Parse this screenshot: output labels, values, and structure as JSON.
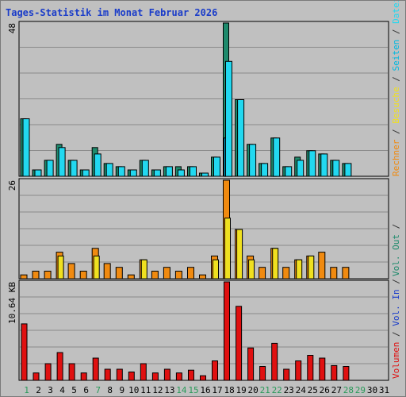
{
  "title": "Tages-Statistik im Monat Februar 2026",
  "colors": {
    "background": "#c0c0c0",
    "anfragen": "#1e8a6c",
    "dateien": "#22d8f0",
    "seiten": "#00b8e0",
    "besuche": "#f0e020",
    "rechner": "#f08a10",
    "volumen": "#e01010",
    "title": "#1a3cc9",
    "weekend_day": "#2a9a5a",
    "weekday": "#000000"
  },
  "chart_data": [
    {
      "type": "bar",
      "panel": "top",
      "scale_label": "48",
      "ylim": [
        0,
        48
      ],
      "categories": [
        "1",
        "2",
        "3",
        "4",
        "5",
        "6",
        "7",
        "8",
        "9",
        "10",
        "11",
        "12",
        "13",
        "14",
        "15",
        "16",
        "17",
        "18",
        "19",
        "20",
        "21",
        "22",
        "23",
        "24",
        "25",
        "26",
        "27",
        "28",
        "29",
        "30",
        "31"
      ],
      "series": [
        {
          "name": "Anfragen",
          "values": [
            18,
            2,
            5,
            10,
            5,
            2,
            9,
            4,
            3,
            2,
            5,
            2,
            3,
            3,
            3,
            1,
            6,
            48,
            24,
            10,
            4,
            12,
            3,
            6,
            8,
            7,
            5,
            4,
            0,
            0,
            0
          ]
        },
        {
          "name": "Dateien",
          "values": [
            18,
            2,
            5,
            9,
            5,
            2,
            7,
            4,
            3,
            2,
            5,
            2,
            3,
            2,
            3,
            1,
            6,
            36,
            24,
            10,
            4,
            12,
            3,
            5,
            8,
            7,
            5,
            4,
            0,
            0,
            0
          ]
        },
        {
          "name": "Seiten",
          "values": [
            0,
            0,
            0,
            0,
            0,
            0,
            0,
            0,
            0,
            0,
            0,
            0,
            0,
            0,
            0,
            0,
            0,
            12,
            0,
            0,
            0,
            0,
            0,
            0,
            0,
            0,
            0,
            0,
            0,
            0,
            0
          ]
        }
      ]
    },
    {
      "type": "bar",
      "panel": "middle",
      "scale_label": "26",
      "ylim": [
        0,
        26
      ],
      "categories": [
        "1",
        "2",
        "3",
        "4",
        "5",
        "6",
        "7",
        "8",
        "9",
        "10",
        "11",
        "12",
        "13",
        "14",
        "15",
        "16",
        "17",
        "18",
        "19",
        "20",
        "21",
        "22",
        "23",
        "24",
        "25",
        "26",
        "27",
        "28",
        "29",
        "30",
        "31"
      ],
      "series": [
        {
          "name": "Rechner",
          "values": [
            1,
            2,
            2,
            7,
            4,
            2,
            8,
            4,
            3,
            1,
            5,
            2,
            3,
            2,
            3,
            1,
            6,
            26,
            13,
            6,
            3,
            8,
            3,
            5,
            6,
            7,
            3,
            3,
            0,
            0,
            0
          ]
        },
        {
          "name": "Besuche",
          "values": [
            0,
            0,
            0,
            6,
            0,
            0,
            6,
            0,
            0,
            0,
            5,
            0,
            0,
            0,
            0,
            0,
            5,
            16,
            13,
            5,
            0,
            8,
            0,
            5,
            6,
            0,
            0,
            0,
            0,
            0,
            0
          ]
        }
      ]
    },
    {
      "type": "bar",
      "panel": "bottom",
      "scale_label": "10.64 KB",
      "ylim": [
        0,
        10.64
      ],
      "categories": [
        "1",
        "2",
        "3",
        "4",
        "5",
        "6",
        "7",
        "8",
        "9",
        "10",
        "11",
        "12",
        "13",
        "14",
        "15",
        "16",
        "17",
        "18",
        "19",
        "20",
        "21",
        "22",
        "23",
        "24",
        "25",
        "26",
        "27",
        "28",
        "29",
        "30",
        "31"
      ],
      "series": [
        {
          "name": "Volumen",
          "values": [
            6.1,
            0.8,
            1.8,
            3.0,
            1.8,
            0.8,
            2.4,
            1.2,
            1.2,
            0.9,
            1.8,
            0.8,
            1.2,
            0.8,
            1.1,
            0.5,
            2.1,
            10.64,
            8.0,
            3.5,
            1.5,
            4.0,
            1.2,
            2.1,
            2.7,
            2.4,
            1.6,
            1.5,
            0,
            0,
            0
          ]
        }
      ]
    }
  ],
  "legend_top": [
    "Anfragen",
    "/",
    "Dateien",
    "/",
    "Seiten",
    "/",
    "Besuche",
    "/",
    "Rechner"
  ],
  "legend_middle": [
    "/",
    "Vol. Out"
  ],
  "legend_bottom": [
    "/",
    "Vol. In",
    "/",
    "Volumen"
  ],
  "days": [
    "1",
    "2",
    "3",
    "4",
    "5",
    "6",
    "7",
    "8",
    "9",
    "10",
    "11",
    "12",
    "13",
    "14",
    "15",
    "16",
    "17",
    "18",
    "19",
    "20",
    "21",
    "22",
    "23",
    "24",
    "25",
    "26",
    "27",
    "28",
    "29",
    "30",
    "31"
  ],
  "weekend_days": [
    1,
    7,
    14,
    15,
    21,
    22,
    28,
    29
  ]
}
